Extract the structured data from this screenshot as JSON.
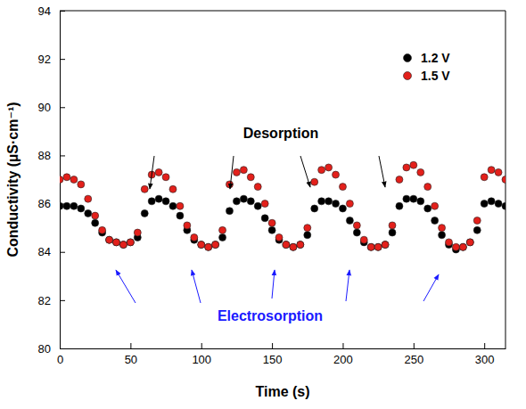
{
  "chart_data": {
    "type": "scatter",
    "x_label": "Time (s)",
    "y_label": "Conductivity (µS·cm⁻¹)",
    "x": [
      0,
      5,
      10,
      15,
      20,
      25,
      30,
      35,
      40,
      45,
      50,
      55,
      60,
      65,
      70,
      75,
      80,
      85,
      90,
      95,
      100,
      105,
      110,
      115,
      120,
      125,
      130,
      135,
      140,
      145,
      150,
      155,
      160,
      165,
      170,
      175,
      180,
      185,
      190,
      195,
      200,
      205,
      210,
      215,
      220,
      225,
      230,
      235,
      240,
      245,
      250,
      255,
      260,
      265,
      270,
      275,
      280,
      285,
      290,
      295,
      300,
      305,
      310,
      315
    ],
    "series": [
      {
        "name": "1.2 V",
        "color": "#000000",
        "marker": "circle",
        "values": [
          85.9,
          85.9,
          85.9,
          85.8,
          85.6,
          85.2,
          84.8,
          84.5,
          84.4,
          84.3,
          84.4,
          84.6,
          85.6,
          86.1,
          86.2,
          86.1,
          85.9,
          85.5,
          84.9,
          84.5,
          84.3,
          84.2,
          84.3,
          84.6,
          85.7,
          86.1,
          86.2,
          86.1,
          85.9,
          85.4,
          84.9,
          84.5,
          84.3,
          84.2,
          84.3,
          84.7,
          85.8,
          86.1,
          86.1,
          86.0,
          85.8,
          85.3,
          84.8,
          84.4,
          84.2,
          84.2,
          84.3,
          84.8,
          85.9,
          86.2,
          86.2,
          86.1,
          85.8,
          85.3,
          84.7,
          84.3,
          84.1,
          84.2,
          84.4,
          84.9,
          86.0,
          86.1,
          86.0,
          85.9
        ]
      },
      {
        "name": "1.5 V",
        "color": "#e3201b",
        "marker": "circle",
        "values": [
          87.0,
          87.1,
          87.0,
          86.8,
          86.2,
          85.5,
          84.9,
          84.5,
          84.4,
          84.3,
          84.4,
          84.8,
          86.6,
          87.2,
          87.3,
          87.1,
          86.6,
          85.9,
          85.1,
          84.6,
          84.3,
          84.2,
          84.3,
          84.9,
          86.8,
          87.3,
          87.4,
          87.1,
          86.7,
          86.0,
          85.2,
          84.6,
          84.3,
          84.2,
          84.3,
          85.0,
          86.9,
          87.4,
          87.5,
          87.2,
          86.7,
          86.0,
          85.1,
          84.5,
          84.2,
          84.2,
          84.3,
          85.1,
          87.0,
          87.5,
          87.6,
          87.3,
          86.7,
          85.9,
          85.0,
          84.4,
          84.2,
          84.2,
          84.4,
          85.3,
          87.1,
          87.4,
          87.3,
          87.0
        ]
      }
    ],
    "xlim": [
      0,
      315
    ],
    "xticks": [
      0,
      50,
      100,
      150,
      200,
      250,
      300
    ],
    "ylim": [
      80,
      94
    ],
    "yticks": [
      80,
      82,
      84,
      86,
      88,
      90,
      92,
      94
    ],
    "grid": false,
    "legend": "upper right",
    "annotations": [
      {
        "text": "Desorption",
        "color": "#000000"
      },
      {
        "text": "Electrosorption",
        "color": "#1a1aff"
      }
    ]
  }
}
